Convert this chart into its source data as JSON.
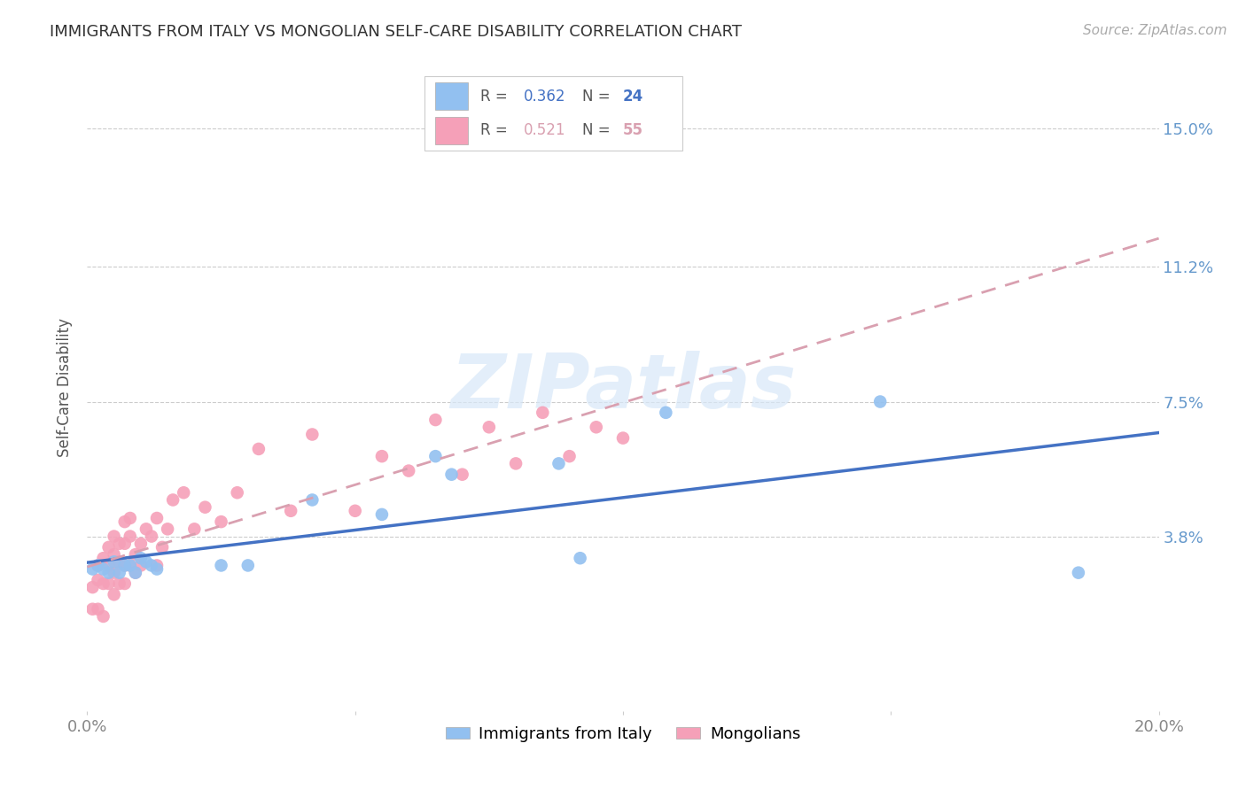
{
  "title": "IMMIGRANTS FROM ITALY VS MONGOLIAN SELF-CARE DISABILITY CORRELATION CHART",
  "source": "Source: ZipAtlas.com",
  "ylabel": "Self-Care Disability",
  "xlim": [
    0.0,
    0.2
  ],
  "ylim": [
    -0.01,
    0.168
  ],
  "ytick_vals": [
    0.038,
    0.075,
    0.112,
    0.15
  ],
  "ytick_labels": [
    "3.8%",
    "7.5%",
    "11.2%",
    "15.0%"
  ],
  "xtick_vals": [
    0.0,
    0.05,
    0.1,
    0.15,
    0.2
  ],
  "xtick_labels": [
    "0.0%",
    "",
    "",
    "",
    "20.0%"
  ],
  "legend_italy_r": "0.362",
  "legend_italy_n": "24",
  "legend_mongolians_r": "0.521",
  "legend_mongolians_n": "55",
  "italy_color": "#92C0F0",
  "mongolian_color": "#F5A0B8",
  "italy_line_color": "#4472C4",
  "mongolian_line_color": "#D9A0B0",
  "background_color": "#FFFFFF",
  "watermark": "ZIPatlas",
  "italy_scatter_x": [
    0.001,
    0.002,
    0.003,
    0.004,
    0.005,
    0.006,
    0.007,
    0.008,
    0.009,
    0.01,
    0.011,
    0.012,
    0.013,
    0.025,
    0.03,
    0.042,
    0.055,
    0.065,
    0.068,
    0.088,
    0.092,
    0.108,
    0.148,
    0.185
  ],
  "italy_scatter_y": [
    0.029,
    0.03,
    0.029,
    0.028,
    0.031,
    0.028,
    0.03,
    0.03,
    0.028,
    0.032,
    0.031,
    0.03,
    0.029,
    0.03,
    0.03,
    0.048,
    0.044,
    0.06,
    0.055,
    0.058,
    0.032,
    0.072,
    0.075,
    0.028
  ],
  "mongolian_scatter_x": [
    0.001,
    0.001,
    0.002,
    0.002,
    0.002,
    0.003,
    0.003,
    0.003,
    0.004,
    0.004,
    0.004,
    0.005,
    0.005,
    0.005,
    0.005,
    0.006,
    0.006,
    0.006,
    0.007,
    0.007,
    0.007,
    0.007,
    0.008,
    0.008,
    0.008,
    0.009,
    0.009,
    0.01,
    0.01,
    0.011,
    0.012,
    0.013,
    0.013,
    0.014,
    0.015,
    0.016,
    0.018,
    0.02,
    0.022,
    0.025,
    0.028,
    0.032,
    0.038,
    0.042,
    0.05,
    0.055,
    0.06,
    0.065,
    0.07,
    0.075,
    0.08,
    0.085,
    0.09,
    0.095,
    0.1
  ],
  "mongolian_scatter_y": [
    0.018,
    0.024,
    0.018,
    0.026,
    0.03,
    0.016,
    0.025,
    0.032,
    0.025,
    0.03,
    0.035,
    0.022,
    0.028,
    0.033,
    0.038,
    0.025,
    0.031,
    0.036,
    0.025,
    0.03,
    0.036,
    0.042,
    0.03,
    0.038,
    0.043,
    0.028,
    0.033,
    0.03,
    0.036,
    0.04,
    0.038,
    0.03,
    0.043,
    0.035,
    0.04,
    0.048,
    0.05,
    0.04,
    0.046,
    0.042,
    0.05,
    0.062,
    0.045,
    0.066,
    0.045,
    0.06,
    0.056,
    0.07,
    0.055,
    0.068,
    0.058,
    0.072,
    0.06,
    0.068,
    0.065
  ]
}
